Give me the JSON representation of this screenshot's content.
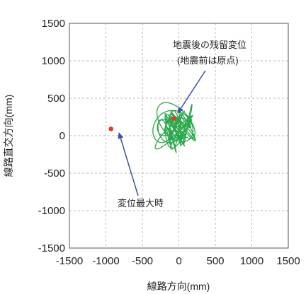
{
  "chart_data": {
    "type": "line",
    "xlabel": "線路方向(mm)",
    "ylabel": "線路直交方向(mm)",
    "xlim": [
      -1500,
      1500
    ],
    "ylim": [
      -1500,
      1500
    ],
    "xticks": [
      "-1500",
      "-1000",
      "-500",
      "0",
      "500",
      "1000",
      "1500"
    ],
    "yticks": [
      "1500",
      "1000",
      "500",
      "0",
      "-500",
      "-1000",
      "-1500"
    ],
    "grid": true,
    "colors": {
      "trajectory": "#2aa84a",
      "marker": "#e23b2a",
      "arrow": "#3b4fa8"
    },
    "points": [
      {
        "x": -930,
        "y": 90,
        "label": "変位最大時"
      },
      {
        "x": -70,
        "y": 230,
        "label": "地震後の残留変位 (地震前は原点)"
      }
    ],
    "annotations": {
      "residual_line1": "地震後の残留変位",
      "residual_line2": "(地震前は原点)",
      "max_disp": "変位最大時"
    }
  }
}
